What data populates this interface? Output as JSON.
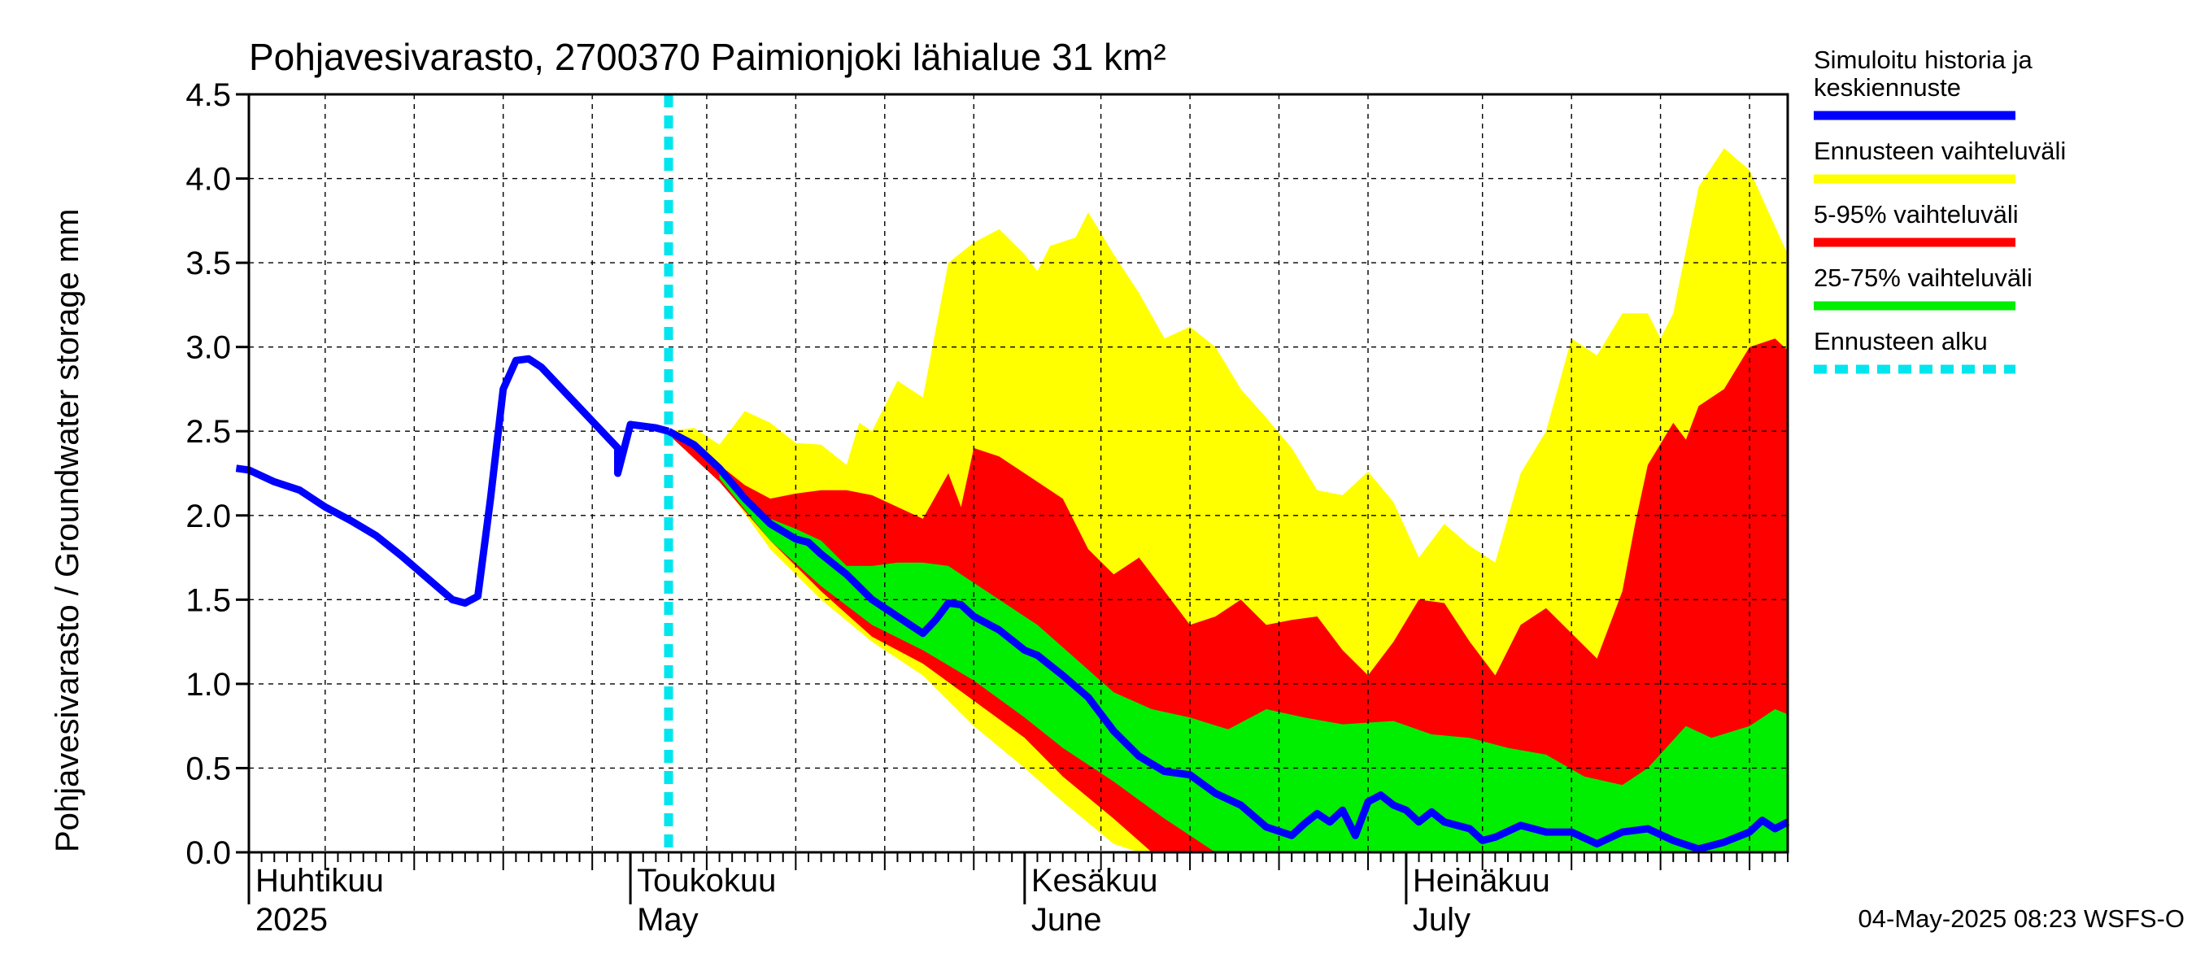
{
  "chart_data": {
    "type": "area",
    "title": "Pohjavesivarasto, 2700370 Paimionjoki lähialue 31 km²",
    "ylabel": "Pohjavesivarasto / Groundwater storage   mm",
    "ylim": [
      0,
      4.5
    ],
    "yticks": [
      "0.0",
      "0.5",
      "1.0",
      "1.5",
      "2.0",
      "2.5",
      "3.0",
      "3.5",
      "4.0",
      "4.5"
    ],
    "grid": true,
    "x_start": "2025-04-01",
    "x_end": "2025-07-31",
    "forecast_start": "2025-05-04",
    "month_labels": [
      {
        "date": "2025-04-01",
        "fi": "Huhtikuu",
        "en": "2025"
      },
      {
        "date": "2025-05-01",
        "fi": "Toukokuu",
        "en": "May"
      },
      {
        "date": "2025-06-01",
        "fi": "Kesäkuu",
        "en": "June"
      },
      {
        "date": "2025-07-01",
        "fi": "Heinäkuu",
        "en": "July"
      }
    ],
    "legend": [
      {
        "label": "Simuloitu historia ja keskiennuste",
        "color": "#0000ff",
        "style": "line"
      },
      {
        "label": "Ennusteen vaihteluväli",
        "color": "#ffff00",
        "style": "band"
      },
      {
        "label": "5-95% vaihteluväli",
        "color": "#ff0000",
        "style": "band"
      },
      {
        "label": "25-75% vaihteluväli",
        "color": "#00ee00",
        "style": "band"
      },
      {
        "label": "Ennusteen alku",
        "color": "#00e5ee",
        "style": "dashed"
      }
    ],
    "history": [
      [
        "2025-03-31",
        2.28
      ],
      [
        "2025-04-01",
        2.27
      ],
      [
        "2025-04-03",
        2.2
      ],
      [
        "2025-04-05",
        2.15
      ],
      [
        "2025-04-07",
        2.05
      ],
      [
        "2025-04-09",
        1.97
      ],
      [
        "2025-04-11",
        1.88
      ],
      [
        "2025-04-13",
        1.76
      ],
      [
        "2025-04-15",
        1.63
      ],
      [
        "2025-04-17",
        1.5
      ],
      [
        "2025-04-18",
        1.48
      ],
      [
        "2025-04-19",
        1.52
      ],
      [
        "2025-04-20",
        2.1
      ],
      [
        "2025-04-21",
        2.75
      ],
      [
        "2025-04-22",
        2.92
      ],
      [
        "2025-04-23",
        2.93
      ],
      [
        "2025-04-24",
        2.88
      ],
      [
        "2025-04-26",
        2.72
      ],
      [
        "2025-04-28",
        2.56
      ],
      [
        "2025-04-30",
        2.4
      ],
      [
        "2025-04-30",
        2.25
      ],
      [
        "2025-05-01",
        2.54
      ],
      [
        "2025-05-03",
        2.52
      ],
      [
        "2025-05-04",
        2.5
      ]
    ],
    "median_forecast": [
      [
        "2025-05-04",
        2.5
      ],
      [
        "2025-05-06",
        2.42
      ],
      [
        "2025-05-08",
        2.28
      ],
      [
        "2025-05-10",
        2.1
      ],
      [
        "2025-05-12",
        1.95
      ],
      [
        "2025-05-14",
        1.86
      ],
      [
        "2025-05-15",
        1.84
      ],
      [
        "2025-05-16",
        1.77
      ],
      [
        "2025-05-18",
        1.65
      ],
      [
        "2025-05-20",
        1.5
      ],
      [
        "2025-05-22",
        1.4
      ],
      [
        "2025-05-23",
        1.35
      ],
      [
        "2025-05-24",
        1.3
      ],
      [
        "2025-05-25",
        1.38
      ],
      [
        "2025-05-26",
        1.48
      ],
      [
        "2025-05-27",
        1.47
      ],
      [
        "2025-05-28",
        1.4
      ],
      [
        "2025-05-30",
        1.32
      ],
      [
        "2025-06-01",
        1.2
      ],
      [
        "2025-06-02",
        1.17
      ],
      [
        "2025-06-04",
        1.05
      ],
      [
        "2025-06-06",
        0.92
      ],
      [
        "2025-06-08",
        0.72
      ],
      [
        "2025-06-10",
        0.57
      ],
      [
        "2025-06-12",
        0.48
      ],
      [
        "2025-06-14",
        0.46
      ],
      [
        "2025-06-16",
        0.35
      ],
      [
        "2025-06-18",
        0.28
      ],
      [
        "2025-06-20",
        0.15
      ],
      [
        "2025-06-22",
        0.1
      ],
      [
        "2025-06-23",
        0.17
      ],
      [
        "2025-06-24",
        0.23
      ],
      [
        "2025-06-25",
        0.18
      ],
      [
        "2025-06-26",
        0.25
      ],
      [
        "2025-06-27",
        0.1
      ],
      [
        "2025-06-28",
        0.3
      ],
      [
        "2025-06-29",
        0.34
      ],
      [
        "2025-06-30",
        0.28
      ],
      [
        "2025-07-01",
        0.25
      ],
      [
        "2025-07-02",
        0.18
      ],
      [
        "2025-07-03",
        0.24
      ],
      [
        "2025-07-04",
        0.18
      ],
      [
        "2025-07-06",
        0.14
      ],
      [
        "2025-07-07",
        0.07
      ],
      [
        "2025-07-08",
        0.09
      ],
      [
        "2025-07-10",
        0.16
      ],
      [
        "2025-07-12",
        0.12
      ],
      [
        "2025-07-14",
        0.12
      ],
      [
        "2025-07-16",
        0.05
      ],
      [
        "2025-07-18",
        0.12
      ],
      [
        "2025-07-20",
        0.14
      ],
      [
        "2025-07-22",
        0.07
      ],
      [
        "2025-07-24",
        0.02
      ],
      [
        "2025-07-26",
        0.06
      ],
      [
        "2025-07-28",
        0.12
      ],
      [
        "2025-07-29",
        0.19
      ],
      [
        "2025-07-30",
        0.14
      ],
      [
        "2025-07-31",
        0.18
      ]
    ],
    "band_full": {
      "upper": [
        [
          "2025-05-04",
          2.5
        ],
        [
          "2025-05-06",
          2.52
        ],
        [
          "2025-05-08",
          2.42
        ],
        [
          "2025-05-10",
          2.62
        ],
        [
          "2025-05-12",
          2.55
        ],
        [
          "2025-05-14",
          2.43
        ],
        [
          "2025-05-16",
          2.42
        ],
        [
          "2025-05-18",
          2.3
        ],
        [
          "2025-05-19",
          2.55
        ],
        [
          "2025-05-20",
          2.5
        ],
        [
          "2025-05-22",
          2.8
        ],
        [
          "2025-05-24",
          2.7
        ],
        [
          "2025-05-26",
          3.5
        ],
        [
          "2025-05-28",
          3.62
        ],
        [
          "2025-05-30",
          3.7
        ],
        [
          "2025-06-01",
          3.55
        ],
        [
          "2025-06-02",
          3.45
        ],
        [
          "2025-06-03",
          3.6
        ],
        [
          "2025-06-05",
          3.65
        ],
        [
          "2025-06-06",
          3.8
        ],
        [
          "2025-06-08",
          3.55
        ],
        [
          "2025-06-10",
          3.32
        ],
        [
          "2025-06-12",
          3.05
        ],
        [
          "2025-06-14",
          3.12
        ],
        [
          "2025-06-16",
          3.0
        ],
        [
          "2025-06-18",
          2.75
        ],
        [
          "2025-06-20",
          2.58
        ],
        [
          "2025-06-22",
          2.4
        ],
        [
          "2025-06-24",
          2.15
        ],
        [
          "2025-06-26",
          2.12
        ],
        [
          "2025-06-28",
          2.26
        ],
        [
          "2025-06-30",
          2.08
        ],
        [
          "2025-07-02",
          1.75
        ],
        [
          "2025-07-04",
          1.95
        ],
        [
          "2025-07-06",
          1.82
        ],
        [
          "2025-07-08",
          1.72
        ],
        [
          "2025-07-10",
          2.25
        ],
        [
          "2025-07-12",
          2.5
        ],
        [
          "2025-07-14",
          3.05
        ],
        [
          "2025-07-16",
          2.95
        ],
        [
          "2025-07-18",
          3.2
        ],
        [
          "2025-07-20",
          3.2
        ],
        [
          "2025-07-21",
          3.05
        ],
        [
          "2025-07-22",
          3.2
        ],
        [
          "2025-07-24",
          3.95
        ],
        [
          "2025-07-26",
          4.18
        ],
        [
          "2025-07-28",
          4.05
        ],
        [
          "2025-07-31",
          3.55
        ]
      ],
      "lower": [
        [
          "2025-05-04",
          2.5
        ],
        [
          "2025-05-08",
          2.22
        ],
        [
          "2025-05-12",
          1.8
        ],
        [
          "2025-05-16",
          1.5
        ],
        [
          "2025-05-20",
          1.25
        ],
        [
          "2025-05-24",
          1.05
        ],
        [
          "2025-05-28",
          0.75
        ],
        [
          "2025-06-01",
          0.5
        ],
        [
          "2025-06-04",
          0.3
        ],
        [
          "2025-06-08",
          0.05
        ],
        [
          "2025-06-10",
          0.0
        ],
        [
          "2025-07-31",
          0.0
        ]
      ]
    },
    "band_5_95": {
      "upper": [
        [
          "2025-05-04",
          2.48
        ],
        [
          "2025-05-06",
          2.4
        ],
        [
          "2025-05-08",
          2.3
        ],
        [
          "2025-05-10",
          2.18
        ],
        [
          "2025-05-12",
          2.1
        ],
        [
          "2025-05-14",
          2.13
        ],
        [
          "2025-05-16",
          2.15
        ],
        [
          "2025-05-18",
          2.15
        ],
        [
          "2025-05-20",
          2.12
        ],
        [
          "2025-05-22",
          2.05
        ],
        [
          "2025-05-24",
          1.98
        ],
        [
          "2025-05-26",
          2.25
        ],
        [
          "2025-05-27",
          2.05
        ],
        [
          "2025-05-28",
          2.4
        ],
        [
          "2025-05-30",
          2.35
        ],
        [
          "2025-06-01",
          2.25
        ],
        [
          "2025-06-04",
          2.1
        ],
        [
          "2025-06-06",
          1.8
        ],
        [
          "2025-06-08",
          1.65
        ],
        [
          "2025-06-10",
          1.75
        ],
        [
          "2025-06-12",
          1.55
        ],
        [
          "2025-06-14",
          1.35
        ],
        [
          "2025-06-16",
          1.4
        ],
        [
          "2025-06-18",
          1.5
        ],
        [
          "2025-06-20",
          1.35
        ],
        [
          "2025-06-22",
          1.38
        ],
        [
          "2025-06-24",
          1.4
        ],
        [
          "2025-06-26",
          1.2
        ],
        [
          "2025-06-28",
          1.05
        ],
        [
          "2025-06-30",
          1.25
        ],
        [
          "2025-07-02",
          1.5
        ],
        [
          "2025-07-04",
          1.48
        ],
        [
          "2025-07-06",
          1.25
        ],
        [
          "2025-07-08",
          1.05
        ],
        [
          "2025-07-10",
          1.35
        ],
        [
          "2025-07-12",
          1.45
        ],
        [
          "2025-07-14",
          1.3
        ],
        [
          "2025-07-16",
          1.15
        ],
        [
          "2025-07-18",
          1.55
        ],
        [
          "2025-07-19",
          1.95
        ],
        [
          "2025-07-20",
          2.3
        ],
        [
          "2025-07-22",
          2.55
        ],
        [
          "2025-07-23",
          2.45
        ],
        [
          "2025-07-24",
          2.65
        ],
        [
          "2025-07-26",
          2.75
        ],
        [
          "2025-07-28",
          3.0
        ],
        [
          "2025-07-30",
          3.05
        ],
        [
          "2025-07-31",
          2.98
        ]
      ],
      "lower": [
        [
          "2025-05-04",
          2.48
        ],
        [
          "2025-05-08",
          2.2
        ],
        [
          "2025-05-12",
          1.85
        ],
        [
          "2025-05-16",
          1.55
        ],
        [
          "2025-05-20",
          1.28
        ],
        [
          "2025-05-24",
          1.12
        ],
        [
          "2025-05-28",
          0.9
        ],
        [
          "2025-06-01",
          0.68
        ],
        [
          "2025-06-04",
          0.45
        ],
        [
          "2025-06-08",
          0.2
        ],
        [
          "2025-06-11",
          0.0
        ],
        [
          "2025-06-16",
          0.0
        ],
        [
          "2025-07-31",
          0.0
        ]
      ]
    },
    "band_25_75": {
      "upper": [
        [
          "2025-05-08",
          2.3
        ],
        [
          "2025-05-10",
          2.12
        ],
        [
          "2025-05-12",
          1.98
        ],
        [
          "2025-05-14",
          1.92
        ],
        [
          "2025-05-16",
          1.85
        ],
        [
          "2025-05-18",
          1.7
        ],
        [
          "2025-05-20",
          1.7
        ],
        [
          "2025-05-22",
          1.72
        ],
        [
          "2025-05-24",
          1.72
        ],
        [
          "2025-05-26",
          1.7
        ],
        [
          "2025-05-28",
          1.6
        ],
        [
          "2025-05-30",
          1.5
        ],
        [
          "2025-06-02",
          1.35
        ],
        [
          "2025-06-05",
          1.15
        ],
        [
          "2025-06-08",
          0.95
        ],
        [
          "2025-06-11",
          0.85
        ],
        [
          "2025-06-14",
          0.8
        ],
        [
          "2025-06-17",
          0.73
        ],
        [
          "2025-06-20",
          0.85
        ],
        [
          "2025-06-23",
          0.8
        ],
        [
          "2025-06-26",
          0.76
        ],
        [
          "2025-06-30",
          0.78
        ],
        [
          "2025-07-03",
          0.7
        ],
        [
          "2025-07-06",
          0.68
        ],
        [
          "2025-07-09",
          0.62
        ],
        [
          "2025-07-12",
          0.58
        ],
        [
          "2025-07-15",
          0.45
        ],
        [
          "2025-07-18",
          0.4
        ],
        [
          "2025-07-20",
          0.5
        ],
        [
          "2025-07-23",
          0.75
        ],
        [
          "2025-07-25",
          0.68
        ],
        [
          "2025-07-28",
          0.75
        ],
        [
          "2025-07-30",
          0.85
        ],
        [
          "2025-07-31",
          0.82
        ]
      ],
      "lower": [
        [
          "2025-05-08",
          2.22
        ],
        [
          "2025-05-12",
          1.85
        ],
        [
          "2025-05-16",
          1.58
        ],
        [
          "2025-05-20",
          1.35
        ],
        [
          "2025-05-24",
          1.2
        ],
        [
          "2025-05-28",
          1.02
        ],
        [
          "2025-06-01",
          0.8
        ],
        [
          "2025-06-04",
          0.62
        ],
        [
          "2025-06-08",
          0.42
        ],
        [
          "2025-06-12",
          0.2
        ],
        [
          "2025-06-16",
          0.0
        ],
        [
          "2025-07-31",
          0.0
        ]
      ]
    }
  },
  "footer": "04-May-2025 08:23 WSFS-O"
}
